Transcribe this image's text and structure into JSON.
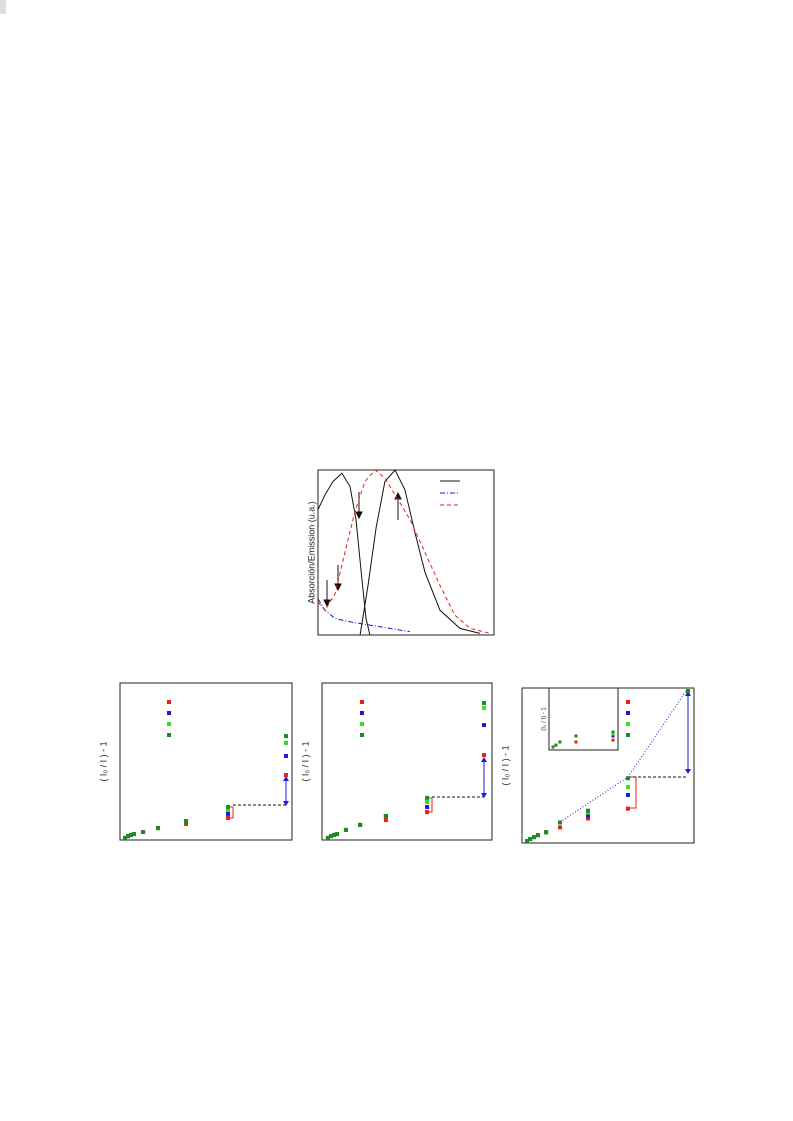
{
  "chart_data": [
    {
      "type": "line",
      "ylabel": "Absorción/Emission (u.a.)",
      "xlim": [
        0,
        10
      ],
      "ylim": [
        0,
        1
      ],
      "legend": "upper right",
      "series": [
        {
          "color": "#111111",
          "dash": "solid",
          "x": [
            0,
            0.4,
            0.85,
            1.36,
            1.82,
            2.16,
            2.44,
            2.73,
            2.95,
            null,
            2.39,
            2.84,
            3.3,
            3.8,
            4.38,
            4.94,
            5.51,
            6.08,
            6.93,
            8.07,
            9.2
          ],
          "values": [
            0.76,
            0.85,
            0.93,
            0.98,
            0.9,
            0.7,
            0.4,
            0.1,
            0,
            null,
            0,
            0.3,
            0.65,
            0.93,
            1,
            0.88,
            0.62,
            0.38,
            0.15,
            0.04,
            0.01
          ]
        },
        {
          "color": "#1a1ae0",
          "dash": "dashdot",
          "x": [
            0,
            0.4,
            0.97,
            1.82,
            2.95,
            4.09,
            5.22
          ],
          "values": [
            0.22,
            0.15,
            0.1,
            0.08,
            0.06,
            0.04,
            0.02
          ]
        },
        {
          "color": "#e8201c",
          "dash": "dashed",
          "x": [
            0,
            0.4,
            0.97,
            1.53,
            2.1,
            2.67,
            3.24,
            3.81,
            4.38,
            5.23,
            6.08,
            6.93,
            7.78,
            8.64,
            9.77
          ],
          "values": [
            0.2,
            0.15,
            0.25,
            0.5,
            0.75,
            0.93,
            1,
            0.95,
            0.85,
            0.7,
            0.5,
            0.3,
            0.12,
            0.04,
            0.01
          ]
        }
      ]
    },
    {
      "type": "scatter",
      "ylabel": "( I₀ / I ) - 1",
      "xlim": [
        0,
        10
      ],
      "ylim": [
        0,
        10
      ],
      "legend": "upper center",
      "x": [
        0.29,
        0.47,
        0.64,
        0.81,
        1.34,
        2.21,
        3.84,
        6.28,
        9.65
      ],
      "series": [
        {
          "color": "#e8201c",
          "values": [
            0.13,
            0.25,
            0.32,
            0.38,
            0.51,
            0.76,
            1.02,
            1.4,
            4.14
          ]
        },
        {
          "color": "#1a1ae0",
          "values": [
            0.13,
            0.25,
            0.32,
            0.38,
            0.51,
            0.76,
            1.21,
            1.66,
            5.35
          ]
        },
        {
          "color": "#2ee02e",
          "values": [
            0.13,
            0.25,
            0.32,
            0.38,
            0.51,
            0.76,
            1.21,
            1.91,
            6.18
          ]
        },
        {
          "color": "#1f8a1f",
          "values": [
            0.13,
            0.25,
            0.32,
            0.38,
            0.51,
            0.76,
            1.21,
            2.1,
            6.62
          ]
        }
      ]
    },
    {
      "type": "scatter",
      "ylabel": "( I₀ / I ) - 1",
      "xlim": [
        0,
        10
      ],
      "ylim": [
        0,
        10
      ],
      "legend": "upper center",
      "x": [
        0.35,
        0.53,
        0.71,
        0.88,
        1.41,
        2.24,
        3.76,
        6.18,
        9.53
      ],
      "series": [
        {
          "color": "#e8201c",
          "values": [
            0.13,
            0.25,
            0.32,
            0.38,
            0.64,
            0.96,
            1.27,
            1.78,
            5.41
          ]
        },
        {
          "color": "#1a1ae0",
          "values": [
            0.13,
            0.25,
            0.32,
            0.38,
            0.64,
            0.96,
            1.53,
            2.1,
            7.32
          ]
        },
        {
          "color": "#2ee02e",
          "values": [
            0.13,
            0.25,
            0.32,
            0.38,
            0.64,
            0.96,
            1.53,
            2.42,
            8.41
          ]
        },
        {
          "color": "#1f8a1f",
          "values": [
            0.13,
            0.25,
            0.32,
            0.38,
            0.64,
            0.96,
            1.53,
            2.68,
            8.73
          ]
        }
      ]
    },
    {
      "type": "scatter",
      "ylabel": "( I₀ / I ) - 1",
      "xlim": [
        0,
        10
      ],
      "ylim": [
        0,
        10.2
      ],
      "legend": "upper center",
      "x": [
        0.29,
        0.47,
        0.7,
        0.93,
        1.4,
        2.21,
        3.84,
        6.16,
        9.65
      ],
      "series": [
        {
          "color": "#e8201c",
          "values": [
            0.13,
            0.26,
            0.39,
            0.52,
            0.71,
            1.03,
            1.61,
            2.26,
            10
          ]
        },
        {
          "color": "#1a1ae0",
          "values": [
            0.13,
            0.26,
            0.39,
            0.52,
            0.71,
            1.35,
            1.81,
            3.16,
            10
          ]
        },
        {
          "color": "#2ee02e",
          "values": [
            0.13,
            0.26,
            0.39,
            0.52,
            0.71,
            1.35,
            2.0,
            3.68,
            10
          ]
        },
        {
          "color": "#1f8a1f",
          "values": [
            0.13,
            0.26,
            0.39,
            0.52,
            0.71,
            1.35,
            2.13,
            4.26,
            10
          ]
        }
      ]
    },
    {
      "type": "scatter",
      "ylabel": "(I₀ / I) - 1",
      "xlim": [
        0,
        10
      ],
      "ylim": [
        0,
        10
      ],
      "x": [
        0.58,
        1.01,
        1.59,
        3.91,
        9.28
      ],
      "series": [
        {
          "color": "#e8201c",
          "values": [
            0.48,
            0.8,
            1.29,
            1.29,
            1.6
          ]
        },
        {
          "color": "#1a1ae0",
          "values": [
            0.48,
            0.8,
            1.29,
            2.26,
            2.26
          ]
        },
        {
          "color": "#2ee02e",
          "values": [
            0.48,
            0.8,
            1.29,
            2.26,
            2.58
          ]
        },
        {
          "color": "#1f8a1f",
          "values": [
            0.48,
            0.8,
            1.29,
            2.26,
            2.9
          ]
        }
      ]
    }
  ]
}
